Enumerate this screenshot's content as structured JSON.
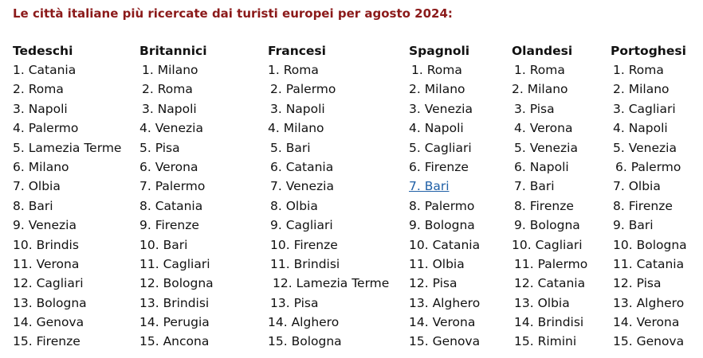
{
  "title": "Le città italiane più ricercate dai turisti europei per agosto 2024:",
  "columns": [
    {
      "header": "Tedeschi",
      "items": [
        "1. Catania",
        "2. Roma",
        "3. Napoli",
        "4. Palermo",
        "5. Lamezia Terme",
        "6. Milano",
        "7. Olbia",
        "8. Bari",
        "9. Venezia",
        "10. Brindis",
        "11. Verona",
        "12. Cagliari",
        "13. Bologna",
        "14. Genova",
        "15. Firenze"
      ]
    },
    {
      "header": "Britannici",
      "items": [
        " 1. Milano",
        " 2. Roma",
        " 3. Napoli",
        "4. Venezia",
        "5. Pisa",
        "6. Verona",
        "7. Palermo",
        "8. Catania",
        "9. Firenze",
        "10. Bari",
        "11. Cagliari",
        "12. Bologna",
        "13. Brindisi",
        "14. Perugia",
        "15. Ancona"
      ]
    },
    {
      "header": "Francesi",
      "items": [
        "1. Roma",
        " 2. Palermo",
        " 3. Napoli",
        "4. Milano",
        " 5. Bari",
        " 6. Catania",
        " 7. Venezia",
        " 8. Olbia",
        " 9. Cagliari",
        " 10. Firenze",
        " 11. Brindisi",
        "  12. Lamezia Terme",
        " 13. Pisa",
        "14. Alghero",
        "15. Bologna"
      ]
    },
    {
      "header": "Spagnoli",
      "items": [
        " 1. Roma",
        "2. Milano",
        "3. Venezia",
        "4. Napoli",
        "5. Cagliari",
        "6. Firenze",
        "7. Bari",
        "8. Palermo",
        "9. Bologna",
        "10. Catania",
        "11. Olbia",
        "12. Pisa",
        "13. Alghero",
        "14. Verona",
        "15. Genova"
      ],
      "link_index": 6
    },
    {
      "header": "Olandesi",
      "items": [
        " 1. Roma",
        "2. Milano",
        " 3. Pisa",
        " 4. Verona",
        " 5. Venezia",
        " 6. Napoli",
        " 7. Bari",
        " 8. Firenze",
        " 9. Bologna",
        "10. Cagliari",
        " 11. Palermo",
        " 12. Catania",
        " 13. Olbia",
        " 14. Brindisi",
        " 15. Rimini"
      ]
    },
    {
      "header": "Portoghesi",
      "items": [
        " 1. Roma",
        " 2. Milano",
        " 3. Cagliari",
        " 4. Napoli",
        " 5. Venezia",
        "  6. Palermo",
        " 7. Olbia",
        " 8. Firenze",
        " 9. Bari",
        " 10. Bologna",
        " 11. Catania",
        " 12. Pisa",
        " 13. Alghero",
        " 14. Verona",
        " 15. Genova"
      ]
    }
  ]
}
